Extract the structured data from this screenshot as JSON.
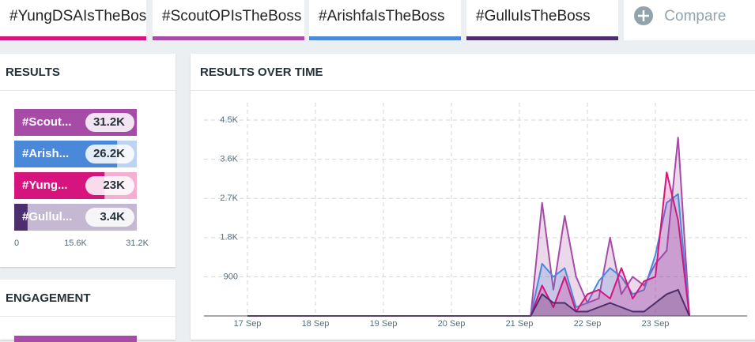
{
  "tabs": [
    "#YungDSAIsTheBoss",
    "#ScoutOPIsTheBoss",
    "#ArishfaIsTheBoss",
    "#GulluIsTheBoss"
  ],
  "compare": "Compare",
  "results": {
    "title": "RESULTS",
    "chart_data": {
      "type": "bar",
      "categories": [
        "#Scout...",
        "#Arish...",
        "#Yung...",
        "#Gullul..."
      ],
      "values": [
        31200,
        26200,
        23000,
        3400
      ],
      "value_labels": [
        "31.2K",
        "26.2K",
        "23K",
        "3.4K"
      ],
      "colors": [
        "#a64ca6",
        "#4a88d9",
        "#d6147e",
        "#4b2e6b"
      ],
      "track_colors": [
        "#d9b4d9",
        "#bcd3f2",
        "#f3b0d2",
        "#c4b8d2"
      ],
      "xlim": [
        0,
        31200
      ],
      "xticks": [
        0,
        {
          "value": 15600,
          "label": "15.6K"
        },
        {
          "value": 31200,
          "label": "31.2K"
        }
      ]
    }
  },
  "results_over_time": {
    "title": "RESULTS OVER TIME",
    "chart_data": {
      "type": "area",
      "categories": [
        "17 Sep",
        null,
        null,
        null,
        null,
        null,
        "18 Sep",
        null,
        null,
        null,
        null,
        null,
        "19 Sep",
        null,
        null,
        null,
        null,
        null,
        "20 Sep",
        null,
        null,
        null,
        null,
        null,
        "21 Sep",
        null,
        null,
        null,
        null,
        null,
        "22 Sep",
        null,
        null,
        null,
        null,
        null,
        "23 Sep",
        null,
        null,
        null
      ],
      "series": [
        {
          "color": "#a64ca6",
          "values": [
            0,
            0,
            0,
            0,
            0,
            0,
            0,
            0,
            0,
            0,
            0,
            0,
            0,
            0,
            0,
            0,
            0,
            0,
            0,
            0,
            0,
            0,
            0,
            0,
            0,
            0,
            2600,
            600,
            2300,
            900,
            300,
            400,
            1800,
            500,
            900,
            700,
            1200,
            1500,
            4100,
            0
          ]
        },
        {
          "color": "#4a88d9",
          "values": [
            0,
            0,
            0,
            0,
            0,
            0,
            0,
            0,
            0,
            0,
            0,
            0,
            0,
            0,
            0,
            0,
            0,
            0,
            0,
            0,
            0,
            0,
            0,
            0,
            0,
            0,
            1200,
            900,
            1100,
            200,
            300,
            800,
            1100,
            900,
            500,
            600,
            1400,
            2600,
            2800,
            0
          ]
        },
        {
          "color": "#d6147e",
          "values": [
            0,
            0,
            0,
            0,
            0,
            0,
            0,
            0,
            0,
            0,
            0,
            0,
            0,
            0,
            0,
            0,
            0,
            0,
            0,
            0,
            0,
            0,
            0,
            0,
            0,
            0,
            700,
            200,
            900,
            100,
            500,
            600,
            400,
            1100,
            400,
            800,
            900,
            3300,
            2200,
            0
          ]
        },
        {
          "color": "#4b2e6b",
          "values": [
            0,
            0,
            0,
            0,
            0,
            0,
            0,
            0,
            0,
            0,
            0,
            0,
            0,
            0,
            0,
            0,
            0,
            0,
            0,
            0,
            0,
            0,
            0,
            0,
            0,
            0,
            500,
            300,
            300,
            100,
            100,
            200,
            300,
            200,
            100,
            100,
            300,
            500,
            600,
            0
          ]
        }
      ],
      "ylim": [
        0,
        4900
      ],
      "yticks": [
        900,
        {
          "value": 1800,
          "label": "1.8K"
        },
        {
          "value": 2700,
          "label": "2.7K"
        },
        {
          "value": 3600,
          "label": "3.6K"
        },
        {
          "value": 4500,
          "label": "4.5K"
        }
      ],
      "grid": true
    }
  },
  "engagement": {
    "title": "ENGAGEMENT"
  }
}
